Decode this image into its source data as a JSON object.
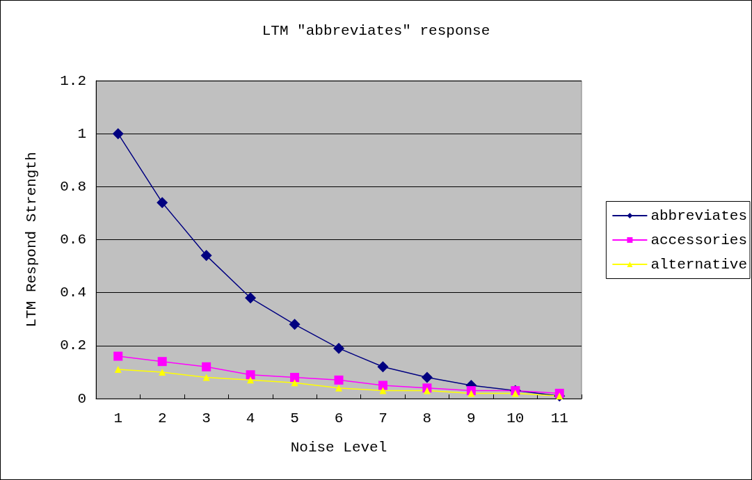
{
  "chart_data": {
    "type": "line",
    "title": "LTM \"abbreviates\" response",
    "xlabel": "Noise Level",
    "ylabel": "LTM Respond Strength",
    "categories": [
      "1",
      "2",
      "3",
      "4",
      "5",
      "6",
      "7",
      "8",
      "9",
      "10",
      "11"
    ],
    "series": [
      {
        "name": "abbreviates",
        "color": "#000080",
        "marker": "diamond",
        "values": [
          1.0,
          0.74,
          0.54,
          0.38,
          0.28,
          0.19,
          0.12,
          0.08,
          0.05,
          0.03,
          0.01
        ]
      },
      {
        "name": "accessories",
        "color": "#ff00ff",
        "marker": "square",
        "values": [
          0.16,
          0.14,
          0.12,
          0.09,
          0.08,
          0.07,
          0.05,
          0.04,
          0.03,
          0.03,
          0.02
        ]
      },
      {
        "name": "alternative",
        "color": "#ffff00",
        "marker": "triangle",
        "values": [
          0.11,
          0.1,
          0.08,
          0.07,
          0.06,
          0.04,
          0.03,
          0.03,
          0.02,
          0.02,
          0.01
        ]
      }
    ],
    "ylim": [
      0,
      1.2
    ],
    "yticks": [
      0,
      0.2,
      0.4,
      0.6,
      0.8,
      1,
      1.2
    ],
    "grid": "y",
    "legend": "right",
    "line_style": "solid"
  }
}
